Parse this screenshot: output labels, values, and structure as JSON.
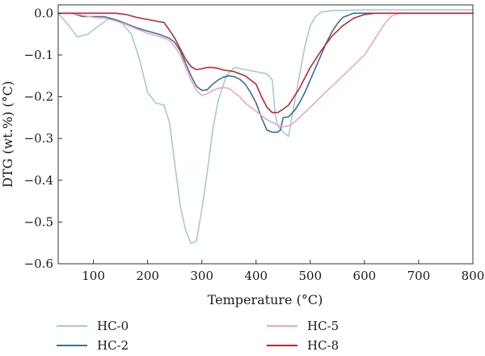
{
  "chart_data": {
    "type": "line",
    "title": "",
    "xlabel": "Temperature (°C)",
    "ylabel": "DTG (wt.%) (°C)",
    "xlim": [
      35,
      800
    ],
    "ylim": [
      -0.6,
      0.02
    ],
    "xticks": [
      "100",
      "200",
      "300",
      "400",
      "500",
      "600",
      "700",
      "800"
    ],
    "yticks": [
      "0.0",
      "−0.1",
      "−0.2",
      "−0.3",
      "−0.4",
      "−0.5",
      "−0.6"
    ],
    "grid": false,
    "legend_position": "bottom",
    "series": [
      {
        "name": "HC-0",
        "color": "#a8c8dc",
        "x": [
          35,
          55,
          70,
          90,
          110,
          130,
          150,
          170,
          185,
          200,
          215,
          230,
          240,
          250,
          260,
          270,
          280,
          290,
          300,
          310,
          320,
          330,
          345,
          360,
          380,
          400,
          420,
          430,
          435,
          440,
          450,
          460,
          470,
          480,
          490,
          500,
          510,
          520,
          540,
          600,
          700,
          800
        ],
        "y": [
          0,
          -0.03,
          -0.057,
          -0.05,
          -0.03,
          -0.012,
          -0.02,
          -0.05,
          -0.11,
          -0.19,
          -0.215,
          -0.22,
          -0.26,
          -0.36,
          -0.46,
          -0.52,
          -0.552,
          -0.545,
          -0.47,
          -0.38,
          -0.28,
          -0.21,
          -0.15,
          -0.13,
          -0.135,
          -0.14,
          -0.145,
          -0.16,
          -0.24,
          -0.27,
          -0.285,
          -0.295,
          -0.22,
          -0.15,
          -0.08,
          -0.03,
          -0.008,
          0.003,
          0.006,
          0.008,
          0.008,
          0.008
        ]
      },
      {
        "name": "HC-2",
        "color": "#3a6f99",
        "x": [
          35,
          60,
          80,
          100,
          120,
          140,
          160,
          180,
          200,
          220,
          240,
          250,
          260,
          270,
          280,
          290,
          300,
          310,
          320,
          330,
          340,
          350,
          360,
          370,
          380,
          390,
          400,
          410,
          420,
          430,
          440,
          445,
          450,
          460,
          470,
          480,
          490,
          500,
          510,
          520,
          530,
          540,
          550,
          560,
          580,
          600,
          800
        ],
        "y": [
          0,
          0,
          -0.008,
          -0.008,
          -0.008,
          -0.015,
          -0.025,
          -0.035,
          -0.043,
          -0.05,
          -0.06,
          -0.07,
          -0.09,
          -0.12,
          -0.15,
          -0.175,
          -0.185,
          -0.183,
          -0.17,
          -0.16,
          -0.153,
          -0.15,
          -0.152,
          -0.158,
          -0.17,
          -0.19,
          -0.215,
          -0.25,
          -0.28,
          -0.285,
          -0.285,
          -0.28,
          -0.25,
          -0.248,
          -0.235,
          -0.215,
          -0.19,
          -0.16,
          -0.13,
          -0.1,
          -0.07,
          -0.045,
          -0.025,
          -0.01,
          0,
          0,
          0
        ]
      },
      {
        "name": "HC-5",
        "color": "#f0a8b8",
        "x": [
          35,
          60,
          80,
          100,
          120,
          140,
          160,
          180,
          200,
          220,
          240,
          250,
          260,
          270,
          280,
          290,
          300,
          310,
          320,
          330,
          340,
          350,
          360,
          370,
          380,
          400,
          420,
          440,
          450,
          460,
          470,
          480,
          500,
          520,
          540,
          560,
          580,
          600,
          610,
          620,
          630,
          640,
          650,
          660,
          670,
          700,
          800
        ],
        "y": [
          0,
          0,
          -0.005,
          -0.01,
          -0.012,
          -0.018,
          -0.027,
          -0.038,
          -0.048,
          -0.055,
          -0.065,
          -0.08,
          -0.1,
          -0.13,
          -0.16,
          -0.185,
          -0.197,
          -0.193,
          -0.185,
          -0.18,
          -0.178,
          -0.18,
          -0.19,
          -0.2,
          -0.215,
          -0.235,
          -0.255,
          -0.268,
          -0.272,
          -0.27,
          -0.262,
          -0.25,
          -0.225,
          -0.2,
          -0.175,
          -0.15,
          -0.125,
          -0.1,
          -0.08,
          -0.06,
          -0.04,
          -0.02,
          -0.007,
          -0.002,
          0,
          0,
          0
        ]
      },
      {
        "name": "HC-8",
        "color": "#c1272d",
        "x": [
          35,
          60,
          80,
          100,
          120,
          140,
          160,
          180,
          200,
          220,
          230,
          240,
          250,
          260,
          270,
          280,
          290,
          300,
          310,
          320,
          330,
          340,
          360,
          380,
          400,
          410,
          420,
          430,
          440,
          450,
          460,
          470,
          480,
          490,
          500,
          520,
          540,
          560,
          580,
          600,
          620,
          800
        ],
        "y": [
          0,
          0,
          0,
          0,
          0,
          0,
          -0.003,
          -0.01,
          -0.015,
          -0.02,
          -0.022,
          -0.04,
          -0.06,
          -0.085,
          -0.11,
          -0.128,
          -0.135,
          -0.133,
          -0.13,
          -0.13,
          -0.132,
          -0.136,
          -0.14,
          -0.15,
          -0.17,
          -0.2,
          -0.225,
          -0.238,
          -0.238,
          -0.23,
          -0.22,
          -0.2,
          -0.18,
          -0.155,
          -0.13,
          -0.09,
          -0.055,
          -0.03,
          -0.012,
          -0.003,
          0,
          0
        ]
      }
    ]
  }
}
